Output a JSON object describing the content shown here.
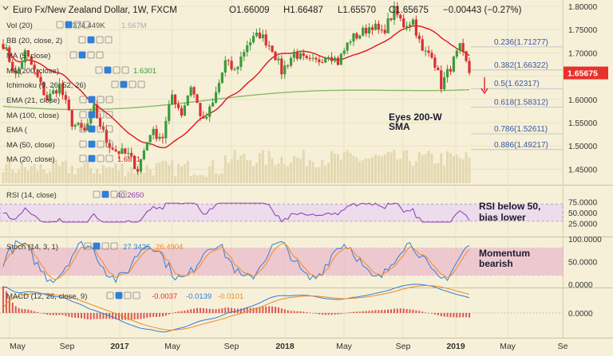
{
  "header": {
    "title": "Euro Fx/New Zealand Dollar, 1W, FXCM",
    "open": "O1.66009",
    "high": "H1.66487",
    "low": "L1.65570",
    "close": "C1.65675",
    "change": "−0.00443 (−0.27%)"
  },
  "indicators": {
    "vol": {
      "label": "Vol (20)",
      "value": "374.449K",
      "value2": "1.567M"
    },
    "bb": {
      "label": "BB (20, close, 2)"
    },
    "ma5": {
      "label": "MA (5, close)"
    },
    "ma200": {
      "label": "MA (200, close)",
      "value": "1.6301"
    },
    "ichimoku": {
      "label": "Ichimoku (9, 26, 52, 26)"
    },
    "ema21": {
      "label": "EMA (21, close)"
    },
    "ma100": {
      "label": "MA (100, close)"
    },
    "ema": {
      "label": "EMA (",
      "value": ""
    },
    "ma50": {
      "label": "MA (50, close)"
    },
    "ma20": {
      "label": "MA (20, close)",
      "value": "1.6871"
    }
  },
  "annotations": {
    "eyes_line1": "Eyes 200-W",
    "eyes_line2": "SMA",
    "rsi_line1": "RSI below 50,",
    "rsi_line2": "bias lower",
    "mom_line1": "Momentum",
    "mom_line2": "bearish"
  },
  "rsi_panel": {
    "label": "RSI (14, close)",
    "value": "40.2650"
  },
  "stoch_panel": {
    "label": "Stoch (14, 3, 1)",
    "k": "27.3426",
    "d": "26.4904"
  },
  "macd_panel": {
    "label": "MACD (12, 26, close, 9)",
    "v1": "-0.0037",
    "v2": "-0.0139",
    "v3": "-0.0101"
  },
  "colors": {
    "background": "#f6f0d8",
    "up": "#3c9a3c",
    "down": "#d83030",
    "ma20": "#e0141e",
    "ma200": "#8ab86a",
    "fib": "#3a5aa8",
    "last_price": "#e8302c",
    "rsi": "#8a3ab4",
    "stoch_k": "#2f7fd6",
    "stoch_d": "#f08a24",
    "band": "#e8a8c8"
  },
  "chart_data": {
    "type": "candlestick",
    "last_price": 1.65675,
    "x_labels": [
      "May",
      "Sep",
      "2017",
      "May",
      "Sep",
      "2018",
      "May",
      "Sep",
      "2019",
      "May",
      "Se"
    ],
    "y_ticks": [
      "1.80000",
      "1.75000",
      "1.70000",
      "1.65000",
      "1.60000",
      "1.55000",
      "1.50000",
      "1.45000"
    ],
    "y_range": [
      1.42,
      1.81
    ],
    "rsi_ticks": [
      "75.0000",
      "50.0000",
      "25.0000"
    ],
    "stoch_ticks": [
      "100.0000",
      "50.0000",
      "0.0000"
    ],
    "macd_ticks": [
      "0.0000"
    ],
    "fib_levels": [
      {
        "label": "0.236(1.71277)",
        "value": 1.71277
      },
      {
        "label": "0.382(1.66322)",
        "value": 1.66322
      },
      {
        "label": "0.5(1.62317)",
        "value": 1.62317
      },
      {
        "label": "0.618(1.58312)",
        "value": 1.58312
      },
      {
        "label": "0.786(1.52611)",
        "value": 1.52611
      },
      {
        "label": "0.886(1.49217)",
        "value": 1.49217
      }
    ],
    "anchors": [
      [
        0,
        1.72
      ],
      [
        4,
        1.65
      ],
      [
        7,
        1.7
      ],
      [
        10,
        1.66
      ],
      [
        14,
        1.6
      ],
      [
        18,
        1.63
      ],
      [
        22,
        1.55
      ],
      [
        26,
        1.53
      ],
      [
        29,
        1.58
      ],
      [
        33,
        1.51
      ],
      [
        36,
        1.49
      ],
      [
        40,
        1.48
      ],
      [
        43,
        1.45
      ],
      [
        47,
        1.53
      ],
      [
        51,
        1.52
      ],
      [
        54,
        1.61
      ],
      [
        57,
        1.57
      ],
      [
        60,
        1.63
      ],
      [
        64,
        1.55
      ],
      [
        67,
        1.59
      ],
      [
        71,
        1.68
      ],
      [
        74,
        1.66
      ],
      [
        78,
        1.72
      ],
      [
        82,
        1.74
      ],
      [
        86,
        1.71
      ],
      [
        89,
        1.66
      ],
      [
        93,
        1.7
      ],
      [
        97,
        1.68
      ],
      [
        100,
        1.68
      ],
      [
        104,
        1.7
      ],
      [
        107,
        1.68
      ],
      [
        111,
        1.73
      ],
      [
        114,
        1.74
      ],
      [
        118,
        1.76
      ],
      [
        121,
        1.74
      ],
      [
        125,
        1.79
      ],
      [
        128,
        1.76
      ],
      [
        131,
        1.77
      ],
      [
        134,
        1.7
      ],
      [
        137,
        1.7
      ],
      [
        140,
        1.63
      ],
      [
        143,
        1.67
      ],
      [
        146,
        1.71
      ],
      [
        149,
        1.66
      ]
    ]
  }
}
